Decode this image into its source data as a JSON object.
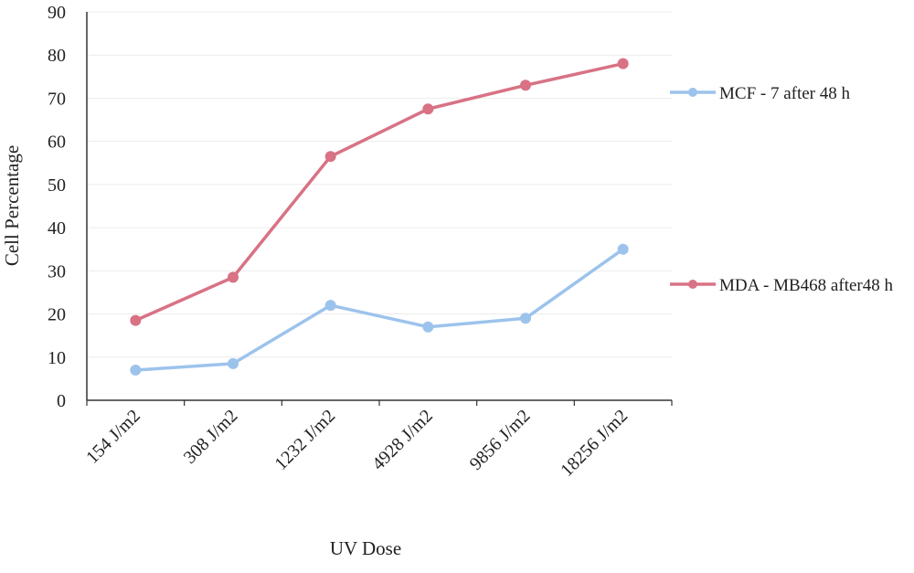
{
  "chart_data": {
    "type": "line",
    "categories": [
      "154 J/m2",
      "308 J/m2",
      "1232 J/m2",
      "4928 J/m2",
      "9856 J/m2",
      "18256 J/m2"
    ],
    "series": [
      {
        "name": "MCF - 7 after 48 h",
        "color": "#9cc3ec",
        "values": [
          7,
          8.5,
          22,
          17,
          19,
          35
        ]
      },
      {
        "name": "MDA - MB468 after48 h",
        "color": "#d87284",
        "values": [
          18.5,
          28.5,
          56.5,
          67.5,
          73,
          78
        ]
      }
    ],
    "ylim": [
      0,
      90
    ],
    "yticks": [
      0,
      10,
      20,
      30,
      40,
      50,
      60,
      70,
      80,
      90
    ],
    "xlabel": "UV Dose",
    "ylabel": "Cell Percentage",
    "grid": true,
    "legend": "right"
  }
}
